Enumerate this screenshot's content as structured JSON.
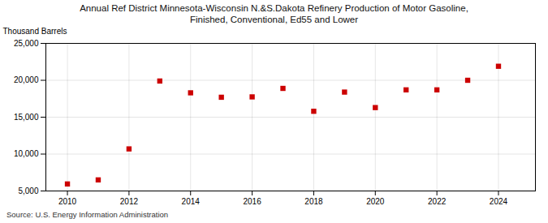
{
  "chart_data": {
    "type": "scatter",
    "title": "Annual Ref District Minnesota-Wisconsin N.&S.Dakota Refinery Production of Motor Gasoline,\nFinished, Conventional, Ed55 and Lower",
    "ylabel": "Thousand Barrels",
    "caption": "Source: U.S. Energy Information Administration",
    "x": [
      2010,
      2011,
      2012,
      2013,
      2014,
      2015,
      2016,
      2017,
      2018,
      2019,
      2020,
      2021,
      2022,
      2023,
      2024
    ],
    "values": [
      5950,
      6500,
      10700,
      19900,
      18300,
      17700,
      17750,
      18900,
      15800,
      18400,
      16300,
      18700,
      18700,
      20000,
      21900
    ],
    "color": "#cc0000",
    "marker": "square",
    "xlim": [
      2009.3,
      2025.2
    ],
    "xticks": [
      2010,
      2012,
      2014,
      2016,
      2018,
      2020,
      2022,
      2024
    ],
    "ylim": [
      5000,
      25000
    ],
    "yticks": [
      {
        "value": 5000,
        "label": "5,000"
      },
      {
        "value": 10000,
        "label": "10,000"
      },
      {
        "value": 15000,
        "label": "15,000"
      },
      {
        "value": 20000,
        "label": "20,000"
      },
      {
        "value": 25000,
        "label": "25,000"
      }
    ],
    "grid": true
  }
}
